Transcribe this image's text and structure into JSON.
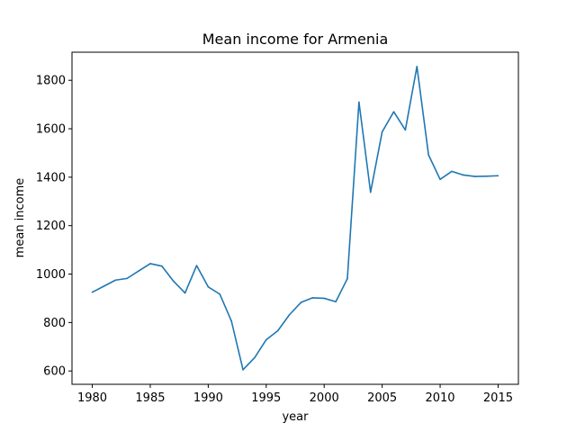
{
  "chart_data": {
    "type": "line",
    "title": "Mean income for Armenia",
    "xlabel": "year",
    "ylabel": "mean income",
    "xlim": [
      1978.25,
      2016.75
    ],
    "ylim": [
      545,
      1916
    ],
    "x_ticks": [
      1980,
      1985,
      1990,
      1995,
      2000,
      2005,
      2010,
      2015
    ],
    "y_ticks": [
      600,
      800,
      1000,
      1200,
      1400,
      1600,
      1800
    ],
    "grid": false,
    "colors": {
      "line": "#1f77b4"
    },
    "series": [
      {
        "x": [
          1980,
          1981,
          1982,
          1983,
          1984,
          1985,
          1986,
          1987,
          1988,
          1989,
          1990,
          1991,
          1992,
          1993,
          1994,
          1995,
          1996,
          1997,
          1998,
          1999,
          2000,
          2001,
          2002,
          2003,
          2004,
          2005,
          2006,
          2007,
          2008,
          2009,
          2010,
          2011,
          2012,
          2013,
          2014,
          2015
        ],
        "y": [
          925,
          950,
          975,
          982,
          1013,
          1043,
          1033,
          971,
          922,
          1035,
          947,
          917,
          806,
          605,
          655,
          729,
          766,
          832,
          883,
          902,
          900,
          886,
          981,
          1710,
          1338,
          1587,
          1670,
          1595,
          1857,
          1492,
          1391,
          1424,
          1409,
          1403,
          1404,
          1406
        ]
      }
    ]
  }
}
